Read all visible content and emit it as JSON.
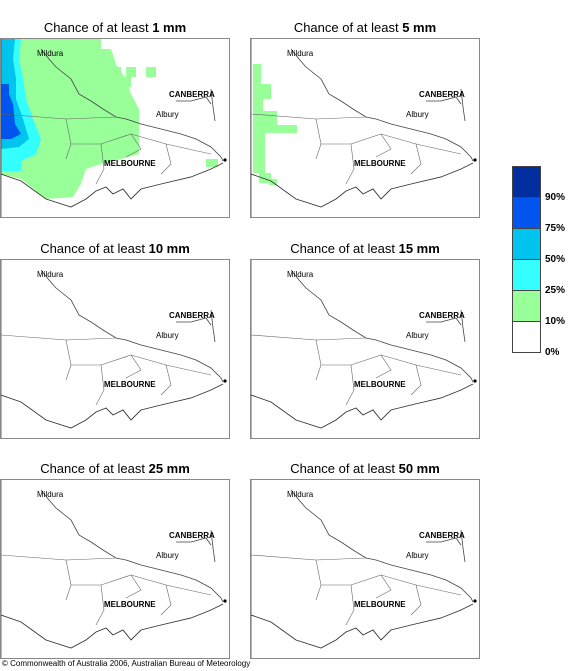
{
  "panels": [
    {
      "prefix": "Chance of at least ",
      "amount": "1 mm"
    },
    {
      "prefix": "Chance of at least ",
      "amount": "5 mm"
    },
    {
      "prefix": "Chance of at least ",
      "amount": "10 mm"
    },
    {
      "prefix": "Chance of at least ",
      "amount": "15 mm"
    },
    {
      "prefix": "Chance of at least ",
      "amount": "25 mm"
    },
    {
      "prefix": "Chance of at least ",
      "amount": "50 mm"
    }
  ],
  "places": {
    "mildura": "Mildura",
    "canberra": "CANBERRA",
    "albury": "Albury",
    "melbourne": "MELBOURNE"
  },
  "legend": {
    "labels": [
      "90%",
      "75%",
      "50%",
      "25%",
      "10%",
      "0%"
    ],
    "colors": [
      "#002e9e",
      "#0055ee",
      "#00c4ee",
      "#33ffff",
      "#99ff99",
      "#ffffff"
    ]
  },
  "copyright": "© Commonwealth of Australia 2006, Australian Bureau of Meteorology"
}
